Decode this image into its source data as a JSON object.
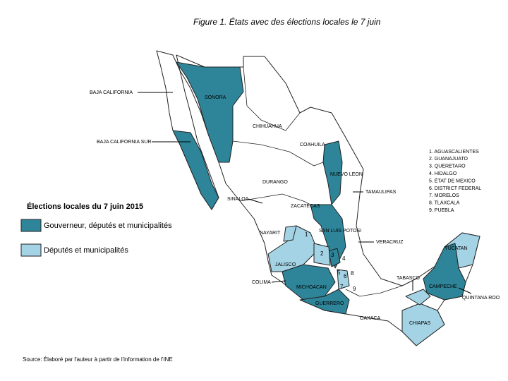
{
  "title": "Figure 1. États avec des élections locales le 7 juin",
  "legend": {
    "title": "Élections locales du 7 juin 2015",
    "items": [
      {
        "label": "Gouverneur, députés et municipalités",
        "color": "#2e8599"
      },
      {
        "label": "Députés et municipalités",
        "color": "#a3d3e4"
      }
    ]
  },
  "map_labels": [
    "BAJA CALIFORNIA",
    "BAJA CALIFORNIA SUR",
    "SONORA",
    "CHIHUAHUA",
    "COAHUILA",
    "NUEVO LEON",
    "TAMAULIPAS",
    "DURANGO",
    "SINALOA",
    "ZACATECAS",
    "NAYARIT",
    "SAN LUIS POTOSI",
    "VERACRUZ",
    "JALISCO",
    "COLIMA",
    "MICHOACAN",
    "GUERRERO",
    "OAXACA",
    "TABASCO",
    "CAMPECHE",
    "YUCATAN",
    "QUINTANA ROO",
    "CHIAPAS"
  ],
  "map_numbers": [
    "1",
    "2",
    "3",
    "4",
    "5",
    "6",
    "7",
    "8",
    "9"
  ],
  "numbered_list": [
    "1. AGUASCALIENTES",
    "2. GUANAJUATO",
    "3. QUERETARO",
    "4. HIDALGO",
    "5. ÉTAT DE MEXICO",
    "6. DISTRICT FEDERAL",
    "7. MORELOS",
    "8. TLAXCALA",
    "9. PUEBLA"
  ],
  "source": "Source: Élaboré par l'auteur à partir de l'information de l'INE"
}
